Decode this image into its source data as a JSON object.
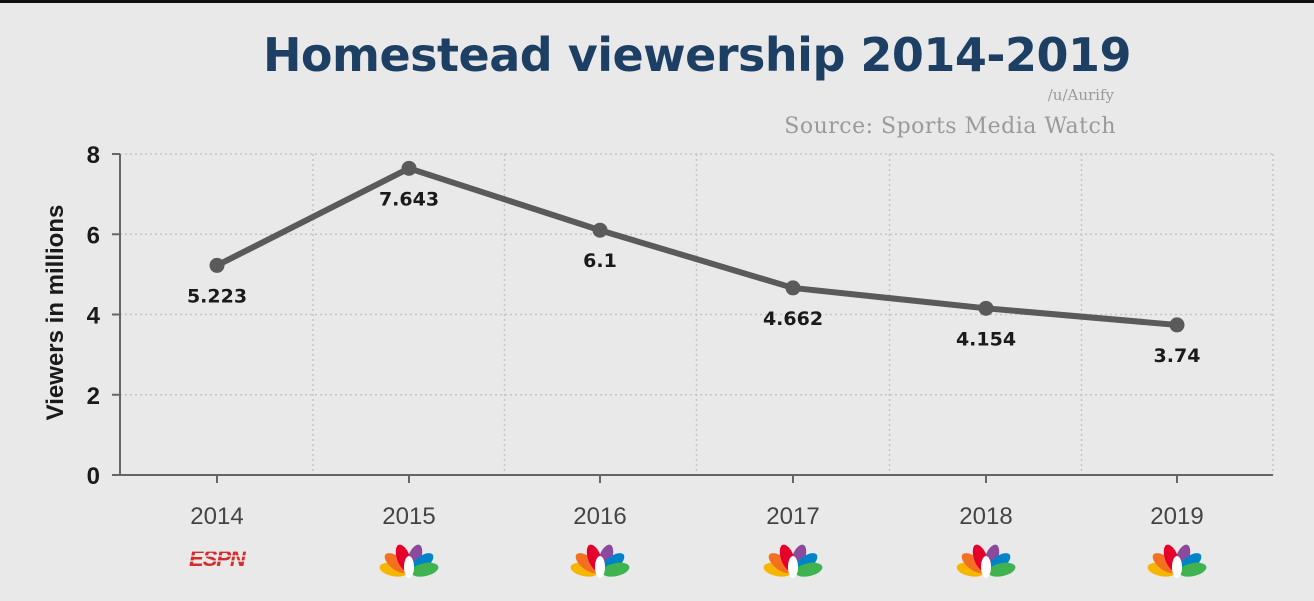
{
  "chart_data": {
    "type": "line",
    "title": "Homestead viewership 2014-2019",
    "credit": "/u/Aurify",
    "source": "Source: Sports Media Watch",
    "ylabel": "Viewers in millions",
    "xlabel": "",
    "categories": [
      "2014",
      "2015",
      "2016",
      "2017",
      "2018",
      "2019"
    ],
    "values": [
      5.223,
      7.643,
      6.1,
      4.662,
      4.154,
      3.74
    ],
    "value_labels": [
      "5.223",
      "7.643",
      "6.1",
      "4.662",
      "4.154",
      "3.74"
    ],
    "yticks": [
      "0",
      "2",
      "4",
      "6",
      "8"
    ],
    "ylim": [
      0,
      8
    ],
    "grid": true,
    "broadcasters": [
      "espn-logo",
      "nbc-peacock-logo",
      "nbc-peacock-logo",
      "nbc-peacock-logo",
      "nbc-peacock-logo",
      "nbc-peacock-logo"
    ],
    "colors": {
      "line": "#5a5a5a",
      "title": "#1d3f63",
      "background": "#e9e9e9",
      "espn": "#d62b2b"
    }
  }
}
